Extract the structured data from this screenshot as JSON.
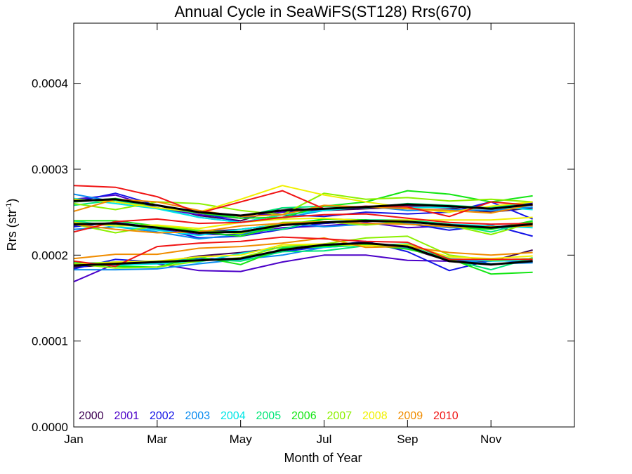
{
  "chart_data": {
    "type": "line",
    "title": "Annual Cycle in SeaWiFS(ST128) Rrs(670)",
    "xlabel": "Month of Year",
    "ylabel_main": "Rrs (str",
    "ylabel_sup": "-1",
    "ylabel_end": ")",
    "xlim": [
      1,
      13
    ],
    "ylim": [
      0.0,
      0.00047
    ],
    "x_ticks": [
      {
        "value": 1,
        "label": "Jan"
      },
      {
        "value": 3,
        "label": "Mar"
      },
      {
        "value": 5,
        "label": "May"
      },
      {
        "value": 7,
        "label": "Jul"
      },
      {
        "value": 9,
        "label": "Sep"
      },
      {
        "value": 11,
        "label": "Nov"
      }
    ],
    "y_ticks": [
      {
        "value": 0.0,
        "label": "0.0000"
      },
      {
        "value": 0.0001,
        "label": "0.0001"
      },
      {
        "value": 0.0002,
        "label": "0.0002"
      },
      {
        "value": 0.0003,
        "label": "0.0003"
      },
      {
        "value": 0.0004,
        "label": "0.0004"
      }
    ],
    "x": [
      1,
      2,
      3,
      4,
      5,
      6,
      7,
      8,
      9,
      10,
      11,
      12
    ],
    "series": [
      {
        "name": "2000",
        "color": "#3d0052",
        "lines": [
          [
            0.000262,
            0.000265,
            0.000258,
            0.000246,
            0.00024,
            0.000255,
            0.000252,
            0.000254,
            0.000256,
            0.000255,
            0.00025,
            0.000255
          ],
          [
            0.000237,
            0.000236,
            0.000232,
            0.000227,
            0.00023,
            0.000236,
            0.000237,
            0.00024,
            0.00024,
            0.000236,
            0.000232,
            0.000237
          ],
          [
            0.000186,
            0.000189,
            0.000191,
            0.000199,
            0.000203,
            0.000209,
            0.000213,
            0.000213,
            0.000208,
            0.000193,
            0.000193,
            0.000206
          ]
        ]
      },
      {
        "name": "2001",
        "color": "#4b00c8",
        "lines": [
          [
            0.000265,
            0.00027,
            0.000255,
            0.000247,
            0.000243,
            0.00025,
            0.000253,
            0.000255,
            0.000258,
            0.000257,
            0.000255,
            0.000261
          ],
          [
            0.000234,
            0.000238,
            0.00023,
            0.000224,
            0.000224,
            0.000232,
            0.000234,
            0.000238,
            0.000232,
            0.000234,
            0.000232,
            0.000238
          ],
          [
            0.000169,
            0.00019,
            0.00019,
            0.000182,
            0.000181,
            0.000192,
            0.0002,
            0.0002,
            0.000194,
            0.000193,
            0.000194,
            0.000196
          ]
        ]
      },
      {
        "name": "2002",
        "color": "#1414e6",
        "lines": [
          [
            0.000262,
            0.000272,
            0.000258,
            0.00025,
            0.000238,
            0.000247,
            0.000245,
            0.00025,
            0.000248,
            0.00025,
            0.000262,
            0.000242
          ],
          [
            0.000233,
            0.000238,
            0.000232,
            0.00022,
            0.000222,
            0.00023,
            0.000237,
            0.00024,
            0.000237,
            0.000229,
            0.000235,
            0.000222
          ],
          [
            0.000184,
            0.000195,
            0.000192,
            0.000196,
            0.000196,
            0.000204,
            0.00021,
            0.000216,
            0.000204,
            0.000182,
            0.000194,
            0.000192
          ]
        ]
      },
      {
        "name": "2003",
        "color": "#0a8cf0",
        "lines": [
          [
            0.000271,
            0.000262,
            0.000255,
            0.000244,
            0.000238,
            0.000243,
            0.000252,
            0.000257,
            0.000252,
            0.000253,
            0.000252,
            0.000256
          ],
          [
            0.00023,
            0.000233,
            0.000227,
            0.000219,
            0.000224,
            0.000237,
            0.000233,
            0.000236,
            0.000237,
            0.000232,
            0.000231,
            0.000234
          ],
          [
            0.000183,
            0.000183,
            0.000184,
            0.00019,
            0.000195,
            0.0002,
            0.000209,
            0.000212,
            0.000208,
            0.000196,
            0.00019,
            0.000191
          ]
        ]
      },
      {
        "name": "2004",
        "color": "#00e6e6",
        "lines": [
          [
            0.000266,
            0.00026,
            0.000254,
            0.000244,
            0.000238,
            0.000247,
            0.000252,
            0.000256,
            0.000255,
            0.000256,
            0.000256,
            0.000253
          ],
          [
            0.00024,
            0.000233,
            0.000229,
            0.000223,
            0.00023,
            0.000236,
            0.000238,
            0.000241,
            0.000239,
            0.000236,
            0.000234,
            0.000232
          ],
          [
            0.000191,
            0.000188,
            0.00019,
            0.000192,
            0.000202,
            0.000209,
            0.000209,
            0.000212,
            0.000212,
            0.000196,
            0.000193,
            0.000194
          ]
        ]
      },
      {
        "name": "2005",
        "color": "#00e678",
        "lines": [
          [
            0.000258,
            0.000264,
            0.000255,
            0.000249,
            0.000245,
            0.000255,
            0.000257,
            0.000255,
            0.00026,
            0.000258,
            0.000255,
            0.000262
          ],
          [
            0.000238,
            0.000236,
            0.000231,
            0.000228,
            0.000227,
            0.00023,
            0.000242,
            0.000241,
            0.000241,
            0.000236,
            0.000227,
            0.000239
          ],
          [
            0.00019,
            0.000192,
            0.000193,
            0.000195,
            0.000193,
            0.000204,
            0.000205,
            0.000211,
            0.000213,
            0.000195,
            0.000183,
            0.000197
          ]
        ]
      },
      {
        "name": "2006",
        "color": "#14e614",
        "lines": [
          [
            0.000262,
            0.000266,
            0.000258,
            0.000249,
            0.000243,
            0.000244,
            0.000257,
            0.000262,
            0.000275,
            0.000271,
            0.000262,
            0.000269
          ],
          [
            0.00024,
            0.00024,
            0.000234,
            0.000227,
            0.000222,
            0.000235,
            0.000242,
            0.000241,
            0.000236,
            0.000233,
            0.00023,
            0.00024
          ],
          [
            0.000191,
            0.000187,
            0.000186,
            0.000198,
            0.000189,
            0.000208,
            0.00021,
            0.000212,
            0.000207,
            0.000196,
            0.000178,
            0.00018
          ]
        ]
      },
      {
        "name": "2007",
        "color": "#8cf000",
        "lines": [
          [
            0.00026,
            0.000253,
            0.000262,
            0.00026,
            0.000252,
            0.000247,
            0.000272,
            0.000265,
            0.000267,
            0.000263,
            0.000265,
            0.000262
          ],
          [
            0.000236,
            0.000226,
            0.000234,
            0.000229,
            0.000225,
            0.000238,
            0.000239,
            0.000235,
            0.000239,
            0.000235,
            0.000224,
            0.000238
          ],
          [
            0.00019,
            0.000185,
            0.000186,
            0.000193,
            0.000197,
            0.00021,
            0.000213,
            0.00022,
            0.000222,
            0.0002,
            0.000194,
            0.000196
          ]
        ]
      },
      {
        "name": "2008",
        "color": "#f0f000",
        "lines": [
          [
            0.000265,
            0.000262,
            0.000255,
            0.00025,
            0.000265,
            0.000281,
            0.00027,
            0.000262,
            0.000255,
            0.00025,
            0.000257,
            0.000262
          ],
          [
            0.000238,
            0.000234,
            0.000235,
            0.000231,
            0.000238,
            0.000242,
            0.000243,
            0.00024,
            0.000241,
            0.000241,
            0.000241,
            0.000244
          ],
          [
            0.000189,
            0.000192,
            0.000193,
            0.000198,
            0.0002,
            0.000212,
            0.000213,
            0.000211,
            0.000212,
            0.000198,
            0.000196,
            0.000199
          ]
        ]
      },
      {
        "name": "2009",
        "color": "#f08c00",
        "lines": [
          [
            0.000251,
            0.000265,
            0.000262,
            0.000252,
            0.000245,
            0.000247,
            0.000258,
            0.000256,
            0.000254,
            0.000252,
            0.000249,
            0.000259
          ],
          [
            0.000236,
            0.00023,
            0.000226,
            0.000227,
            0.000234,
            0.000237,
            0.000239,
            0.000237,
            0.000236,
            0.000233,
            0.000233,
            0.000234
          ],
          [
            0.000196,
            0.000201,
            0.000201,
            0.000208,
            0.00021,
            0.000214,
            0.00022,
            0.000209,
            0.00021,
            0.000203,
            0.0002,
            0.000203
          ]
        ]
      },
      {
        "name": "2010",
        "color": "#f01414",
        "lines": [
          [
            0.000281,
            0.000279,
            0.000268,
            0.000249,
            0.000262,
            0.000275,
            0.000254,
            0.000257,
            0.000256,
            0.000245,
            0.000262,
            0.000258
          ],
          [
            0.000227,
            0.000239,
            0.000242,
            0.000237,
            0.000238,
            0.000244,
            0.000247,
            0.000248,
            0.000243,
            0.000238,
            0.000236,
            0.000237
          ],
          [
            0.000193,
            0.000187,
            0.00021,
            0.000214,
            0.000216,
            0.000221,
            0.000219,
            0.000216,
            0.000215,
            0.000195,
            0.000195,
            0.000195
          ]
        ]
      }
    ],
    "mean_series": {
      "color": "#000000",
      "lines": [
        [
          0.000263,
          0.000265,
          0.000258,
          0.00025,
          0.000246,
          0.000252,
          0.000254,
          0.000256,
          0.000259,
          0.000257,
          0.000254,
          0.000259
        ],
        [
          0.000236,
          0.000237,
          0.000232,
          0.000226,
          0.000227,
          0.000235,
          0.000238,
          0.00024,
          0.000239,
          0.000235,
          0.000232,
          0.000236
        ],
        [
          0.000188,
          0.00019,
          0.000192,
          0.000194,
          0.000196,
          0.000206,
          0.000212,
          0.000214,
          0.00021,
          0.000193,
          0.000189,
          0.000193
        ]
      ]
    },
    "legend_position": "bottom-left, inside plot",
    "grid": false
  }
}
